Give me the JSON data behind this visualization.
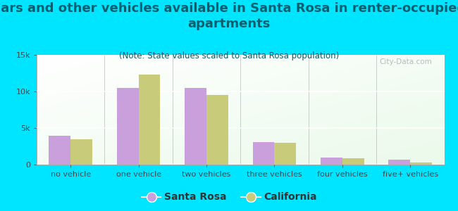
{
  "title": "Cars and other vehicles available in Santa Rosa in renter-occupied\napartments",
  "subtitle": "(Note: State values scaled to Santa Rosa population)",
  "categories": [
    "no vehicle",
    "one vehicle",
    "two vehicles",
    "three vehicles",
    "four vehicles",
    "five+ vehicles"
  ],
  "santa_rosa": [
    3900,
    10500,
    10500,
    3100,
    950,
    650
  ],
  "california": [
    3500,
    12300,
    9500,
    3000,
    900,
    300
  ],
  "santa_rosa_color": "#c9a0dc",
  "california_color": "#c8cc7a",
  "background_color": "#00e5ff",
  "yticks": [
    0,
    5000,
    10000,
    15000
  ],
  "ytick_labels": [
    "0",
    "5k",
    "10k",
    "15k"
  ],
  "ylim": [
    0,
    15000
  ],
  "title_fontsize": 13,
  "subtitle_fontsize": 8.5,
  "tick_fontsize": 8,
  "legend_fontsize": 10,
  "bar_width": 0.32,
  "title_color": "#006070",
  "axis_color": "#444444",
  "watermark": "City-Data.com"
}
